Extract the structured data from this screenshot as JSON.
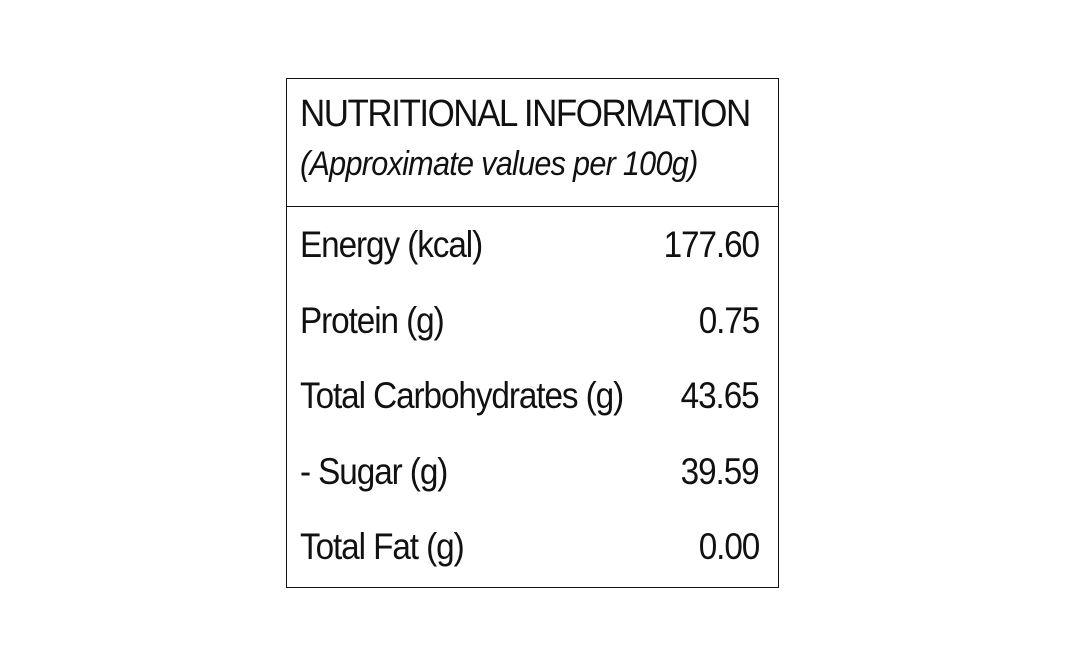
{
  "panel": {
    "title": "NUTRITIONAL INFORMATION",
    "subtitle": "(Approximate values per 100g)"
  },
  "rows": [
    {
      "label": "Energy (kcal)",
      "value": "177.60"
    },
    {
      "label": "Protein (g)",
      "value": "0.75"
    },
    {
      "label": "Total Carbohydrates (g)",
      "value": "43.65"
    },
    {
      "label": "- Sugar (g)",
      "value": "39.59"
    },
    {
      "label": "Total Fat (g)",
      "value": "0.00"
    }
  ]
}
